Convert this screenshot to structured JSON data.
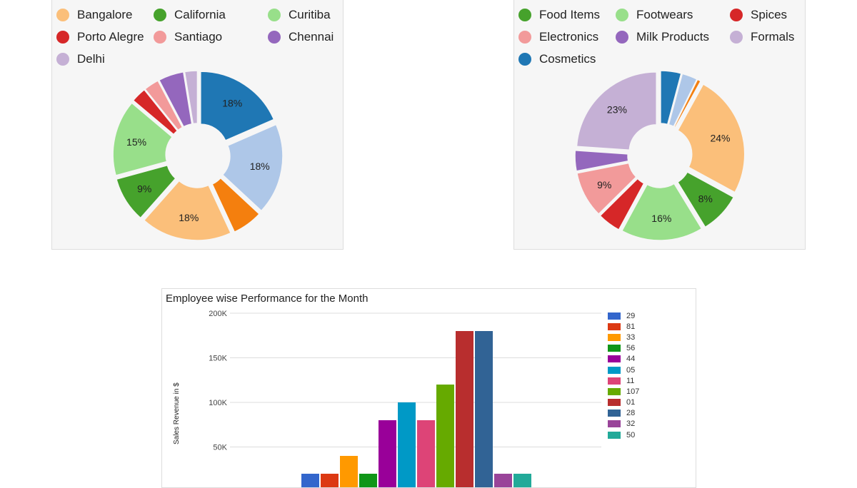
{
  "pie_left": {
    "legend": [
      {
        "label": "Bangalore",
        "color": "#fbbf7a"
      },
      {
        "label": "California",
        "color": "#46a22c"
      },
      {
        "label": "Curitiba",
        "color": "#98df8a"
      },
      {
        "label": "Porto Alegre",
        "color": "#d62728"
      },
      {
        "label": "Santiago",
        "color": "#f29a9a"
      },
      {
        "label": "Chennai",
        "color": "#9467bd"
      },
      {
        "label": "Delhi",
        "color": "#c5b0d5"
      }
    ]
  },
  "pie_right": {
    "legend": [
      {
        "label": "Food Items",
        "color": "#46a22c"
      },
      {
        "label": "Footwears",
        "color": "#98df8a"
      },
      {
        "label": "Spices",
        "color": "#d62728"
      },
      {
        "label": "Electronics",
        "color": "#f29a9a"
      },
      {
        "label": "Milk Products",
        "color": "#9467bd"
      },
      {
        "label": "Formals",
        "color": "#c5b0d5"
      },
      {
        "label": "Cosmetics",
        "color": "#1f77b4"
      }
    ]
  },
  "bar_chart": {
    "title": "Employee wise Performance for the Month",
    "ylabel": "Sales Revenue in $"
  },
  "chart_data": [
    {
      "type": "pie",
      "donut": true,
      "slices": [
        {
          "value": 18,
          "color": "#1f77b4",
          "label": "18%"
        },
        {
          "value": 18,
          "color": "#aec7e8",
          "label": "18%"
        },
        {
          "value": 6,
          "color": "#f47f0e",
          "label": ""
        },
        {
          "value": 18,
          "color": "#fbbf7a",
          "label": "18%"
        },
        {
          "value": 9,
          "color": "#46a22c",
          "label": "9%"
        },
        {
          "value": 15,
          "color": "#98df8a",
          "label": "15%"
        },
        {
          "value": 3,
          "color": "#d62728",
          "label": ""
        },
        {
          "value": 3,
          "color": "#f29a9a",
          "label": ""
        },
        {
          "value": 5,
          "color": "#9467bd",
          "label": ""
        },
        {
          "value": 2.5,
          "color": "#c5b0d5",
          "label": ""
        }
      ]
    },
    {
      "type": "pie",
      "donut": true,
      "slices": [
        {
          "value": 4,
          "color": "#1f77b4",
          "label": ""
        },
        {
          "value": 3,
          "color": "#aec7e8",
          "label": ""
        },
        {
          "value": 0.7,
          "color": "#f47f0e",
          "label": ""
        },
        {
          "value": 24,
          "color": "#fbbf7a",
          "label": "24%"
        },
        {
          "value": 8,
          "color": "#46a22c",
          "label": "8%"
        },
        {
          "value": 16,
          "color": "#98df8a",
          "label": "16%"
        },
        {
          "value": 4.5,
          "color": "#d62728",
          "label": ""
        },
        {
          "value": 9,
          "color": "#f29a9a",
          "label": "9%"
        },
        {
          "value": 4,
          "color": "#9467bd",
          "label": ""
        },
        {
          "value": 23,
          "color": "#c5b0d5",
          "label": "23%"
        }
      ]
    },
    {
      "type": "bar",
      "categories": [
        "29",
        "81",
        "33",
        "56",
        "44",
        "05",
        "11",
        "107",
        "01",
        "28",
        "32",
        "50"
      ],
      "values": [
        20000,
        20000,
        40000,
        20000,
        80000,
        100000,
        80000,
        120000,
        180000,
        180000,
        20000,
        20000
      ],
      "colors": [
        "#3366cc",
        "#dc3912",
        "#ff9900",
        "#109618",
        "#990099",
        "#0099c6",
        "#dd4477",
        "#66aa00",
        "#b82e2e",
        "#316395",
        "#994499",
        "#22aa99"
      ],
      "yticks": [
        "50K",
        "100K",
        "150K",
        "200K"
      ],
      "ylim": [
        0,
        200000
      ],
      "title": "Employee wise Performance for the Month",
      "ylabel": "Sales Revenue in $",
      "legend_position": "right"
    }
  ]
}
